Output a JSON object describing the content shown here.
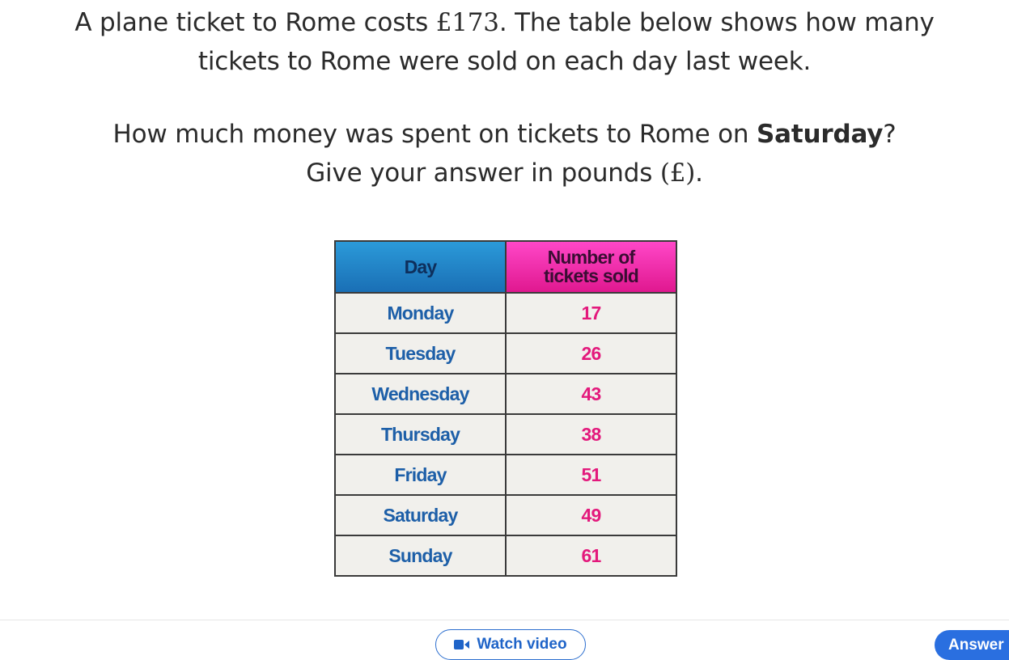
{
  "question": {
    "line1_prefix": "A plane ticket to Rome costs ",
    "price": "£173",
    "line1_suffix": ". The table below shows how many",
    "line2": "tickets to Rome were sold on each day last week.",
    "line3_prefix": "How much money was spent on tickets to Rome on ",
    "line3_bold": "Saturday",
    "line3_suffix": "?",
    "line4_prefix": "Give your answer in pounds ",
    "currency": "(£)",
    "line4_suffix": "."
  },
  "table": {
    "headers": [
      "Day",
      "Number of tickets sold"
    ],
    "header_colors": {
      "day": "#1a6fb5",
      "tickets": "#e0188f"
    },
    "rows": [
      {
        "day": "Monday",
        "tickets": "17"
      },
      {
        "day": "Tuesday",
        "tickets": "26"
      },
      {
        "day": "Wednesday",
        "tickets": "43"
      },
      {
        "day": "Thursday",
        "tickets": "38"
      },
      {
        "day": "Friday",
        "tickets": "51"
      },
      {
        "day": "Saturday",
        "tickets": "49"
      },
      {
        "day": "Sunday",
        "tickets": "61"
      }
    ]
  },
  "footer": {
    "watch_video_label": "Watch video",
    "watch_video_icon": "video-camera-icon",
    "answer_label": "Answer",
    "accent_color": "#2a6fe0"
  }
}
